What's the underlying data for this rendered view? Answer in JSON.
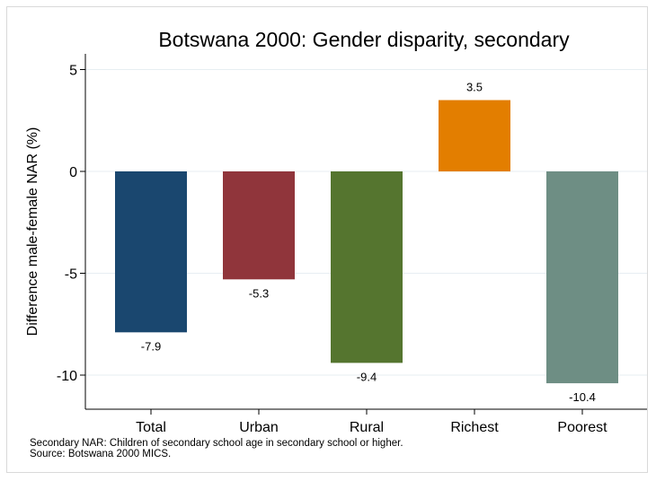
{
  "chart_data": {
    "type": "bar",
    "title": "Botswana 2000: Gender disparity, secondary",
    "xlabel": "",
    "ylabel": "Difference male-female NAR (%)",
    "ylim": [
      -11,
      5.5
    ],
    "yticks": [
      5,
      0,
      -5,
      -10
    ],
    "categories": [
      "Total",
      "Urban",
      "Rural",
      "Richest",
      "Poorest"
    ],
    "values": [
      -7.9,
      -5.3,
      -9.4,
      3.5,
      -10.4
    ],
    "data_labels": [
      "-7.9",
      "-5.3",
      "-9.4",
      "3.5",
      "-10.4"
    ],
    "colors": [
      "#1a476f",
      "#90353b",
      "#55752f",
      "#e37e00",
      "#6e8e84"
    ],
    "grid": true,
    "legend": "none"
  },
  "notes": {
    "line1": "Secondary NAR: Children of secondary school age in secondary school or higher.",
    "line2": "Source: Botswana 2000 MICS."
  }
}
